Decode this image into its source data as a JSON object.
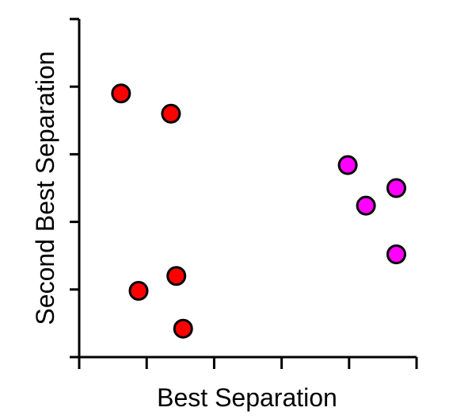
{
  "chart_data": {
    "type": "scatter",
    "title": "",
    "xlabel": "Best Separation",
    "ylabel": "Second Best Separation",
    "xlim": [
      0,
      5
    ],
    "ylim": [
      0,
      5
    ],
    "x_ticks": [
      0,
      1,
      2,
      3,
      4,
      5
    ],
    "y_ticks": [
      0,
      1,
      2,
      3,
      4,
      5
    ],
    "tick_labels_shown": false,
    "grid": false,
    "legend": "none",
    "series": [
      {
        "color": "#ff0000",
        "points": [
          {
            "x": 0.62,
            "y": 3.9
          },
          {
            "x": 1.36,
            "y": 3.6
          },
          {
            "x": 1.44,
            "y": 1.2
          },
          {
            "x": 0.88,
            "y": 0.98
          },
          {
            "x": 1.54,
            "y": 0.42
          }
        ]
      },
      {
        "color": "#ff00ff",
        "points": [
          {
            "x": 3.98,
            "y": 2.84
          },
          {
            "x": 4.7,
            "y": 2.5
          },
          {
            "x": 4.25,
            "y": 2.24
          },
          {
            "x": 4.7,
            "y": 1.52
          }
        ]
      }
    ]
  }
}
